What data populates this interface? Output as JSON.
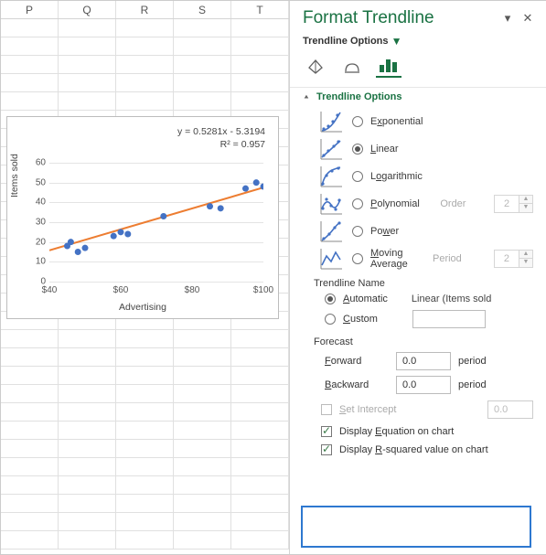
{
  "sheet": {
    "columns": [
      "P",
      "Q",
      "R",
      "S",
      "T"
    ],
    "row_count": 29
  },
  "chart": {
    "type": "scatter-with-trendline",
    "equation_line1": "y = 0.5281x - 5.3194",
    "equation_line2": "R² = 0.957",
    "y_label": "Items sold",
    "x_label": "Advertising",
    "xlim": [
      40,
      100
    ],
    "ylim": [
      0,
      60
    ],
    "x_ticks": [
      40,
      60,
      80,
      100
    ],
    "y_ticks": [
      0,
      10,
      20,
      30,
      40,
      50,
      60
    ],
    "x_tick_labels": [
      "$40",
      "$60",
      "$80",
      "$100"
    ],
    "y_tick_labels": [
      "0",
      "10",
      "20",
      "30",
      "40",
      "50",
      "60"
    ],
    "points": [
      [
        45,
        18
      ],
      [
        46,
        20
      ],
      [
        48,
        15
      ],
      [
        50,
        17
      ],
      [
        58,
        23
      ],
      [
        60,
        25
      ],
      [
        62,
        24
      ],
      [
        72,
        33
      ],
      [
        85,
        38
      ],
      [
        88,
        37
      ],
      [
        95,
        47
      ],
      [
        98,
        50
      ],
      [
        100,
        48
      ]
    ],
    "point_color": "#4472c4",
    "trendline_color": "#ed7d31",
    "gridline_color": "#e4e4e4",
    "plot_background": "#ffffff"
  },
  "panel": {
    "title": "Format Trendline",
    "subheader": "Trendline Options",
    "section": "Trendline Options",
    "type_options": [
      {
        "label": "Exponential",
        "underline": "x",
        "checked": false
      },
      {
        "label": "Linear",
        "underline": "L",
        "checked": true
      },
      {
        "label": "Logarithmic",
        "underline": "o",
        "checked": false
      },
      {
        "label": "Polynomial",
        "underline": "P",
        "checked": false,
        "spin_label": "Order",
        "spin_value": "2",
        "spin_disabled": true
      },
      {
        "label": "Power",
        "underline": "w",
        "checked": false
      },
      {
        "label": "Moving Average",
        "underline": "M",
        "checked": false,
        "spin_label": "Period",
        "spin_value": "2",
        "spin_disabled": true
      }
    ],
    "name_section": "Trendline Name",
    "name_auto_label": "Automatic",
    "name_auto_value": "Linear (Items sold",
    "name_custom_label": "Custom",
    "name_custom_value": "",
    "name_selected": "auto",
    "forecast_label": "Forecast",
    "forecast_forward_label": "Forward",
    "forecast_forward_value": "0.0",
    "forecast_backward_label": "Backward",
    "forecast_backward_value": "0.0",
    "forecast_unit": "period",
    "set_intercept_label": "Set Intercept",
    "set_intercept_value": "0.0",
    "set_intercept_checked": false,
    "display_equation_label": "Display Equation on chart",
    "display_equation_checked": true,
    "display_r2_label": "Display R-squared value on chart",
    "display_r2_checked": true
  },
  "colors": {
    "accent_green": "#1a7243",
    "highlight_blue": "#2e78d0"
  }
}
